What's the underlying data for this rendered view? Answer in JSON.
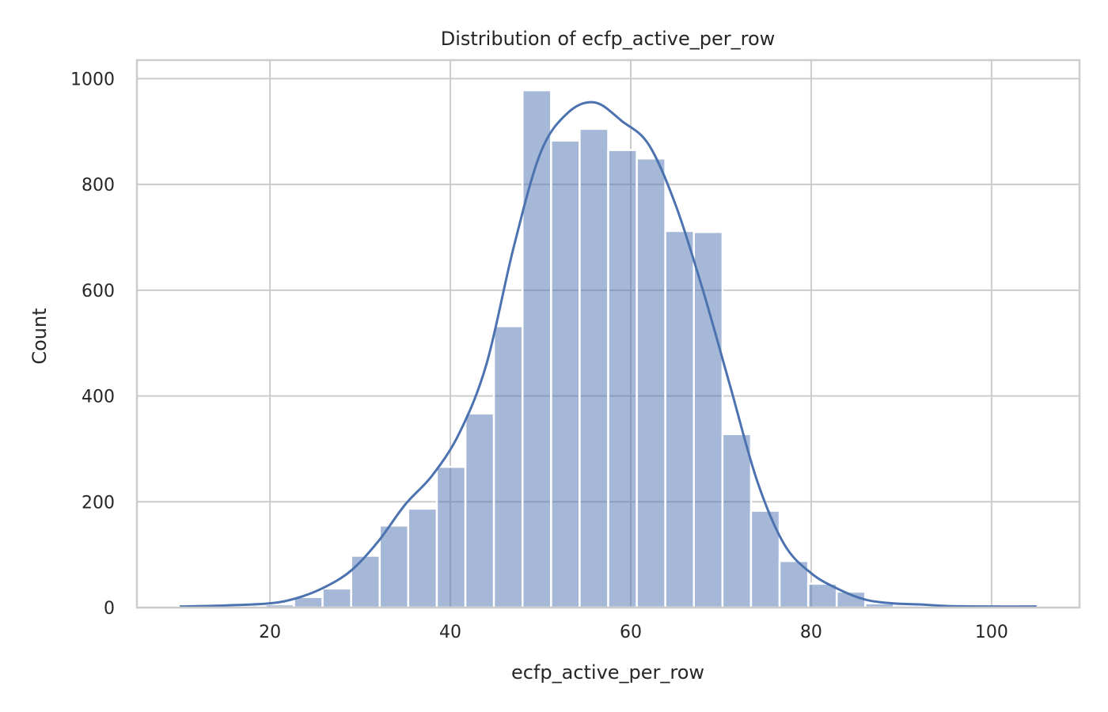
{
  "chart_data": {
    "type": "bar",
    "title": "Distribution of ecfp_active_per_row",
    "xlabel": "ecfp_active_per_row",
    "ylabel": "Count",
    "xlim": [
      5.25,
      109.75
    ],
    "ylim": [
      0,
      1035
    ],
    "x_ticks": [
      20,
      40,
      60,
      80,
      100
    ],
    "y_ticks": [
      0,
      200,
      400,
      600,
      800,
      1000
    ],
    "grid": true,
    "legend": "none",
    "bin_edges": [
      10.0,
      13.17,
      16.33,
      19.5,
      22.67,
      25.83,
      29.0,
      32.17,
      35.33,
      38.5,
      41.67,
      44.83,
      48.0,
      51.17,
      54.33,
      57.5,
      60.67,
      63.83,
      67.0,
      70.17,
      73.33,
      76.5,
      79.67,
      82.83,
      86.0,
      89.17,
      92.33,
      95.5,
      98.67,
      101.83,
      105.0
    ],
    "counts": [
      1,
      2,
      3,
      6,
      20,
      36,
      98,
      155,
      187,
      266,
      367,
      532,
      978,
      883,
      905,
      865,
      849,
      712,
      710,
      328,
      183,
      88,
      45,
      30,
      8,
      4,
      1,
      1,
      0,
      1
    ],
    "kde": {
      "x": [
        10,
        15,
        20,
        23,
        26,
        29,
        32,
        35,
        38,
        41,
        44,
        47,
        50,
        53,
        56,
        59,
        62,
        65,
        68,
        71,
        74,
        77,
        80,
        83,
        86,
        89,
        92,
        95,
        100,
        105
      ],
      "y": [
        2,
        4,
        8,
        18,
        38,
        70,
        125,
        195,
        250,
        330,
        460,
        680,
        860,
        935,
        955,
        920,
        875,
        760,
        600,
        420,
        240,
        120,
        65,
        35,
        15,
        8,
        6,
        3,
        2,
        2
      ]
    },
    "colors": {
      "bar": "#4c72b0",
      "bar_opacity": 0.5,
      "kde": "#4c72b0",
      "grid": "#cccccc",
      "spine": "#cccccc"
    }
  }
}
